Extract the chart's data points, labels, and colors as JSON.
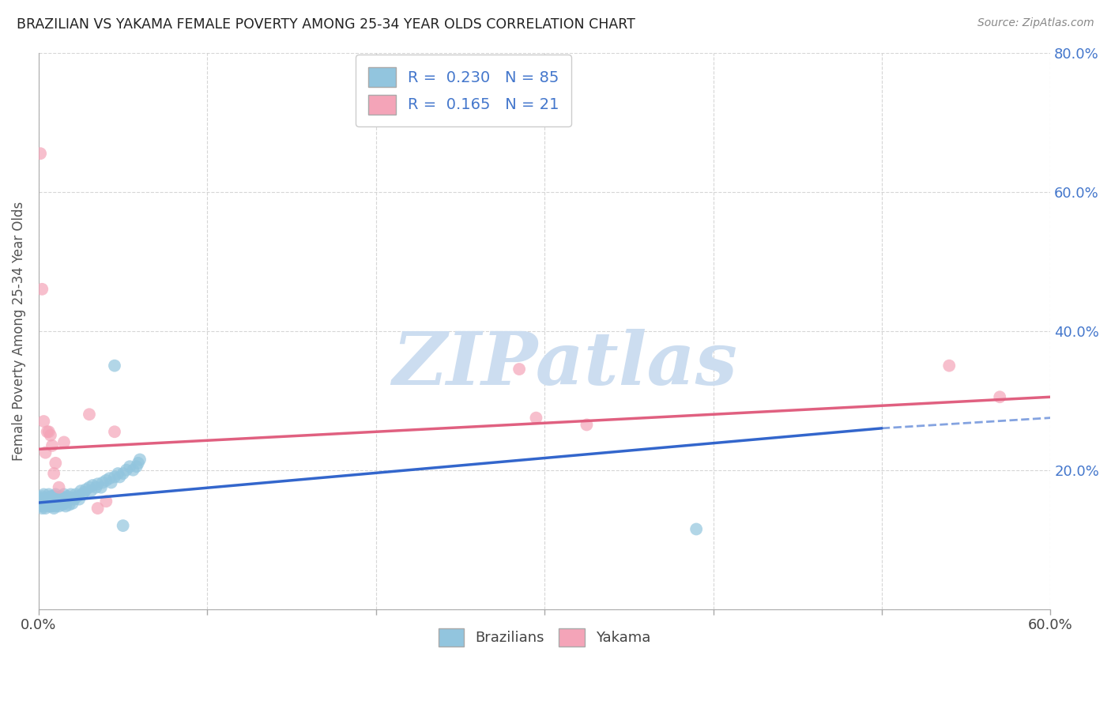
{
  "title": "BRAZILIAN VS YAKAMA FEMALE POVERTY AMONG 25-34 YEAR OLDS CORRELATION CHART",
  "source": "Source: ZipAtlas.com",
  "ylabel": "Female Poverty Among 25-34 Year Olds",
  "xlim": [
    0.0,
    0.6
  ],
  "ylim": [
    0.0,
    0.8
  ],
  "blue_color": "#92c5de",
  "pink_color": "#f4a4b8",
  "trend_blue": "#3366cc",
  "trend_pink": "#e06080",
  "watermark": "ZIPatlas",
  "watermark_color": "#ccddf0",
  "background": "#ffffff",
  "grid_color": "#cccccc",
  "title_color": "#222222",
  "axis_label_color": "#4477cc",
  "brazilians_x": [
    0.001,
    0.001,
    0.001,
    0.002,
    0.002,
    0.002,
    0.002,
    0.003,
    0.003,
    0.003,
    0.003,
    0.004,
    0.004,
    0.004,
    0.005,
    0.005,
    0.005,
    0.006,
    0.006,
    0.006,
    0.007,
    0.007,
    0.007,
    0.007,
    0.008,
    0.008,
    0.008,
    0.008,
    0.009,
    0.009,
    0.009,
    0.01,
    0.01,
    0.01,
    0.01,
    0.011,
    0.011,
    0.012,
    0.012,
    0.013,
    0.013,
    0.014,
    0.014,
    0.015,
    0.015,
    0.016,
    0.016,
    0.017,
    0.017,
    0.018,
    0.018,
    0.019,
    0.02,
    0.02,
    0.021,
    0.022,
    0.023,
    0.024,
    0.025,
    0.026,
    0.027,
    0.028,
    0.03,
    0.031,
    0.032,
    0.034,
    0.035,
    0.037,
    0.038,
    0.04,
    0.042,
    0.043,
    0.045,
    0.047,
    0.048,
    0.05,
    0.052,
    0.054,
    0.056,
    0.058,
    0.059,
    0.06,
    0.045,
    0.05,
    0.39
  ],
  "brazilians_y": [
    0.155,
    0.148,
    0.16,
    0.152,
    0.158,
    0.145,
    0.162,
    0.15,
    0.155,
    0.148,
    0.165,
    0.152,
    0.158,
    0.145,
    0.16,
    0.155,
    0.15,
    0.158,
    0.148,
    0.165,
    0.155,
    0.162,
    0.148,
    0.158,
    0.16,
    0.148,
    0.155,
    0.162,
    0.152,
    0.158,
    0.145,
    0.162,
    0.155,
    0.148,
    0.165,
    0.158,
    0.152,
    0.16,
    0.148,
    0.155,
    0.162,
    0.15,
    0.158,
    0.165,
    0.152,
    0.16,
    0.148,
    0.155,
    0.162,
    0.158,
    0.15,
    0.165,
    0.16,
    0.152,
    0.158,
    0.165,
    0.162,
    0.158,
    0.17,
    0.165,
    0.168,
    0.172,
    0.175,
    0.17,
    0.178,
    0.175,
    0.18,
    0.175,
    0.182,
    0.185,
    0.188,
    0.182,
    0.19,
    0.195,
    0.19,
    0.195,
    0.2,
    0.205,
    0.2,
    0.205,
    0.21,
    0.215,
    0.35,
    0.12,
    0.115
  ],
  "yakama_x": [
    0.001,
    0.002,
    0.003,
    0.004,
    0.005,
    0.006,
    0.007,
    0.008,
    0.009,
    0.01,
    0.012,
    0.015,
    0.285,
    0.295,
    0.325,
    0.54,
    0.57,
    0.03,
    0.035,
    0.04,
    0.045
  ],
  "yakama_y": [
    0.655,
    0.46,
    0.27,
    0.225,
    0.255,
    0.255,
    0.25,
    0.235,
    0.195,
    0.21,
    0.175,
    0.24,
    0.345,
    0.275,
    0.265,
    0.35,
    0.305,
    0.28,
    0.145,
    0.155,
    0.255
  ],
  "trend_blue_x0": 0.0,
  "trend_blue_y0": 0.153,
  "trend_blue_x1": 0.5,
  "trend_blue_y1": 0.26,
  "trend_blue_dashed_x0": 0.5,
  "trend_blue_dashed_y0": 0.26,
  "trend_blue_dashed_x1": 0.6,
  "trend_blue_dashed_y1": 0.275,
  "trend_pink_x0": 0.0,
  "trend_pink_y0": 0.23,
  "trend_pink_x1": 0.6,
  "trend_pink_y1": 0.305
}
